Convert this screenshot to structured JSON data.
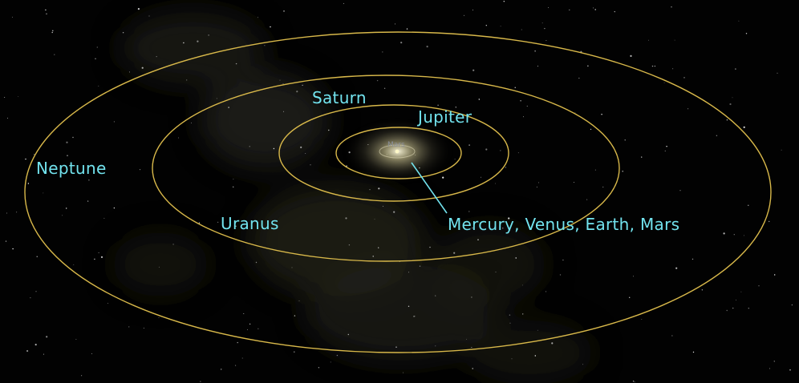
{
  "colors": {
    "background": "#000000",
    "orbit": "#d8b84a",
    "label": "#72e3ee",
    "sun": "#fff8c8",
    "inner_orbit": "#cfc9a8",
    "tiny_label": "#8a8f9a"
  },
  "labels": {
    "neptune": "Neptune",
    "uranus": "Uranus",
    "saturn": "Saturn",
    "jupiter": "Jupiter",
    "inner_planets": "Mercury, Venus, Earth, Mars",
    "mars_small": "Mars"
  }
}
